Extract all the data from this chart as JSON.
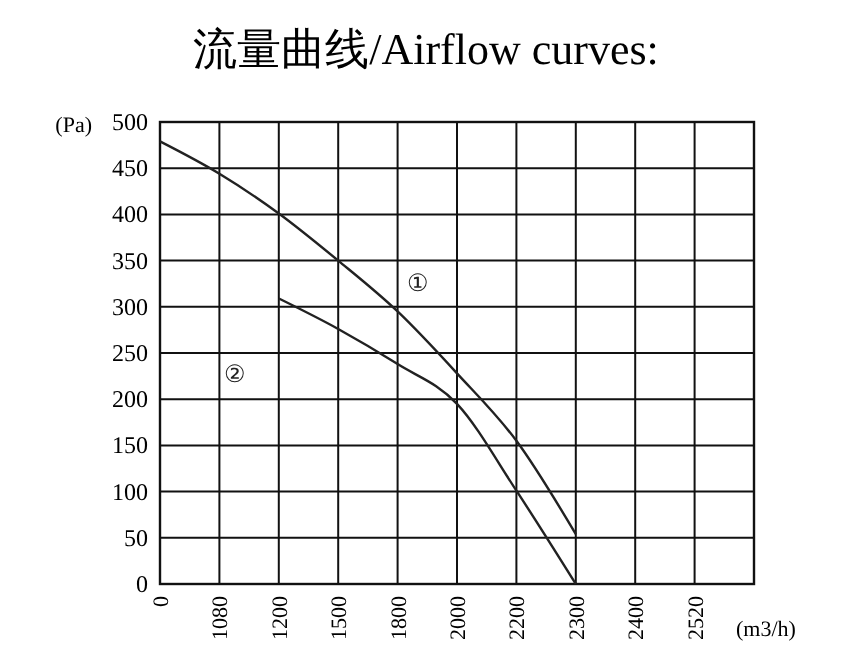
{
  "chart_data": {
    "type": "line",
    "title": "流量曲线/Airflow curves:",
    "xlabel": "(m3/h)",
    "ylabel": "(Pa)",
    "categories": [
      "0",
      "1080",
      "1200",
      "1500",
      "1800",
      "2000",
      "2200",
      "2300",
      "2400",
      "2520",
      null
    ],
    "ylim": [
      0,
      500
    ],
    "yticks": [
      0,
      50,
      100,
      150,
      200,
      250,
      300,
      350,
      400,
      450,
      500
    ],
    "grid": true,
    "marker": "none",
    "line_style": "solid",
    "series": [
      {
        "name": "①",
        "color": "#222222",
        "values": [
          479,
          444,
          401,
          350,
          295,
          228,
          155,
          54,
          null,
          null,
          null
        ]
      },
      {
        "name": "②",
        "color": "#222222",
        "values": [
          null,
          null,
          309,
          276,
          238,
          195,
          101,
          0,
          null,
          null,
          null
        ]
      }
    ]
  }
}
